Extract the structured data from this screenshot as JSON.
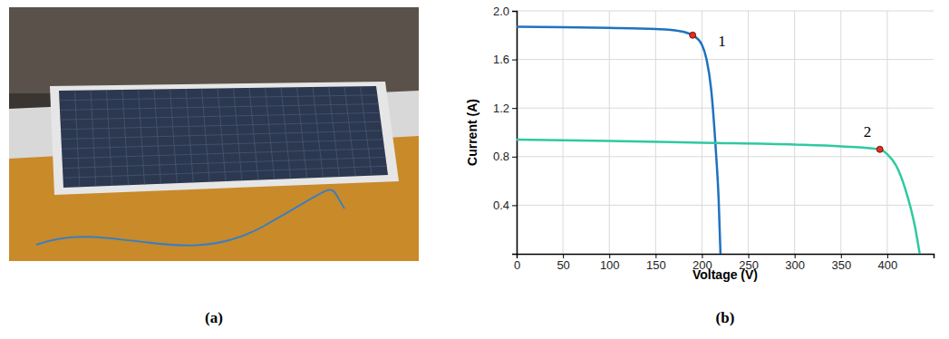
{
  "figure": {
    "captions": [
      "(a)",
      "(b)"
    ]
  },
  "chart_data": {
    "type": "line",
    "x_label": "Voltage (V)",
    "y_label": "Current (A)",
    "xlim": [
      0,
      450
    ],
    "xticks": [
      0,
      50,
      100,
      150,
      200,
      250,
      300,
      350,
      400
    ],
    "ylim": [
      0,
      2
    ],
    "yticks": [
      0.4,
      0.8,
      1.2,
      {
        "value": 1.6,
        "label": "1.6"
      },
      {
        "value": 2,
        "label": "2.0"
      }
    ],
    "grid": true,
    "series": [
      {
        "color": "#1f72c0",
        "line_style": "solid",
        "x": [
          0,
          50,
          100,
          150,
          175,
          190,
          200,
          205,
          210,
          215,
          218,
          220
        ],
        "values": [
          1.87,
          1.865,
          1.86,
          1.85,
          1.835,
          1.8,
          1.72,
          1.6,
          1.35,
          0.85,
          0.45,
          0
        ]
      },
      {
        "color": "#2ec9a0",
        "line_style": "solid",
        "x": [
          0,
          100,
          200,
          300,
          350,
          392,
          400,
          410,
          420,
          430,
          435
        ],
        "values": [
          0.94,
          0.93,
          0.915,
          0.9,
          0.885,
          0.86,
          0.82,
          0.72,
          0.52,
          0.22,
          0
        ]
      }
    ],
    "annotations": [
      {
        "text": "1",
        "x": 190,
        "y": 1.8,
        "color": "#e03020"
      },
      {
        "text": "2",
        "x": 392,
        "y": 0.86,
        "color": "#e03020"
      }
    ]
  }
}
